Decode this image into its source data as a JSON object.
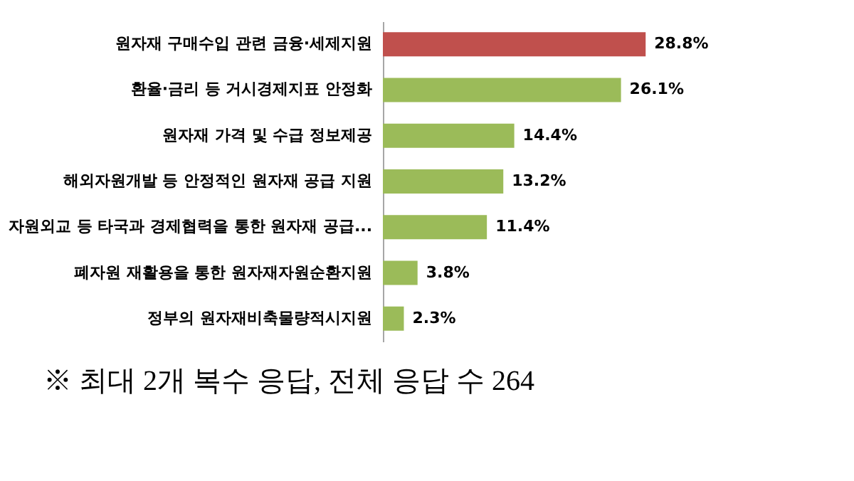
{
  "chart_data": {
    "type": "bar",
    "orientation": "horizontal",
    "categories": [
      "원자재 구매수입 관련 금융·세제지원",
      "환율·금리 등 거시경제지표 안정화",
      "원자재 가격 및 수급 정보제공",
      "해외자원개발 등 안정적인 원자재 공급 지원",
      "자원외교 등 타국과 경제협력을 통한 원자재 공급...",
      "폐자원 재활용을 통한 원자재자원순환지원",
      "정부의 원자재비축물량적시지원"
    ],
    "values": [
      28.8,
      26.1,
      14.4,
      13.2,
      11.4,
      3.8,
      2.3
    ],
    "value_labels": [
      "28.8%",
      "26.1%",
      "14.4%",
      "13.2%",
      "11.4%",
      "3.8%",
      "2.3%"
    ],
    "colors": [
      "#c0504d",
      "#9bbb59",
      "#9bbb59",
      "#9bbb59",
      "#9bbb59",
      "#9bbb59",
      "#9bbb59"
    ],
    "grid": false,
    "annotations": [
      "※ 최대 2개 복수 응답, 전체 응답 수 264"
    ]
  }
}
